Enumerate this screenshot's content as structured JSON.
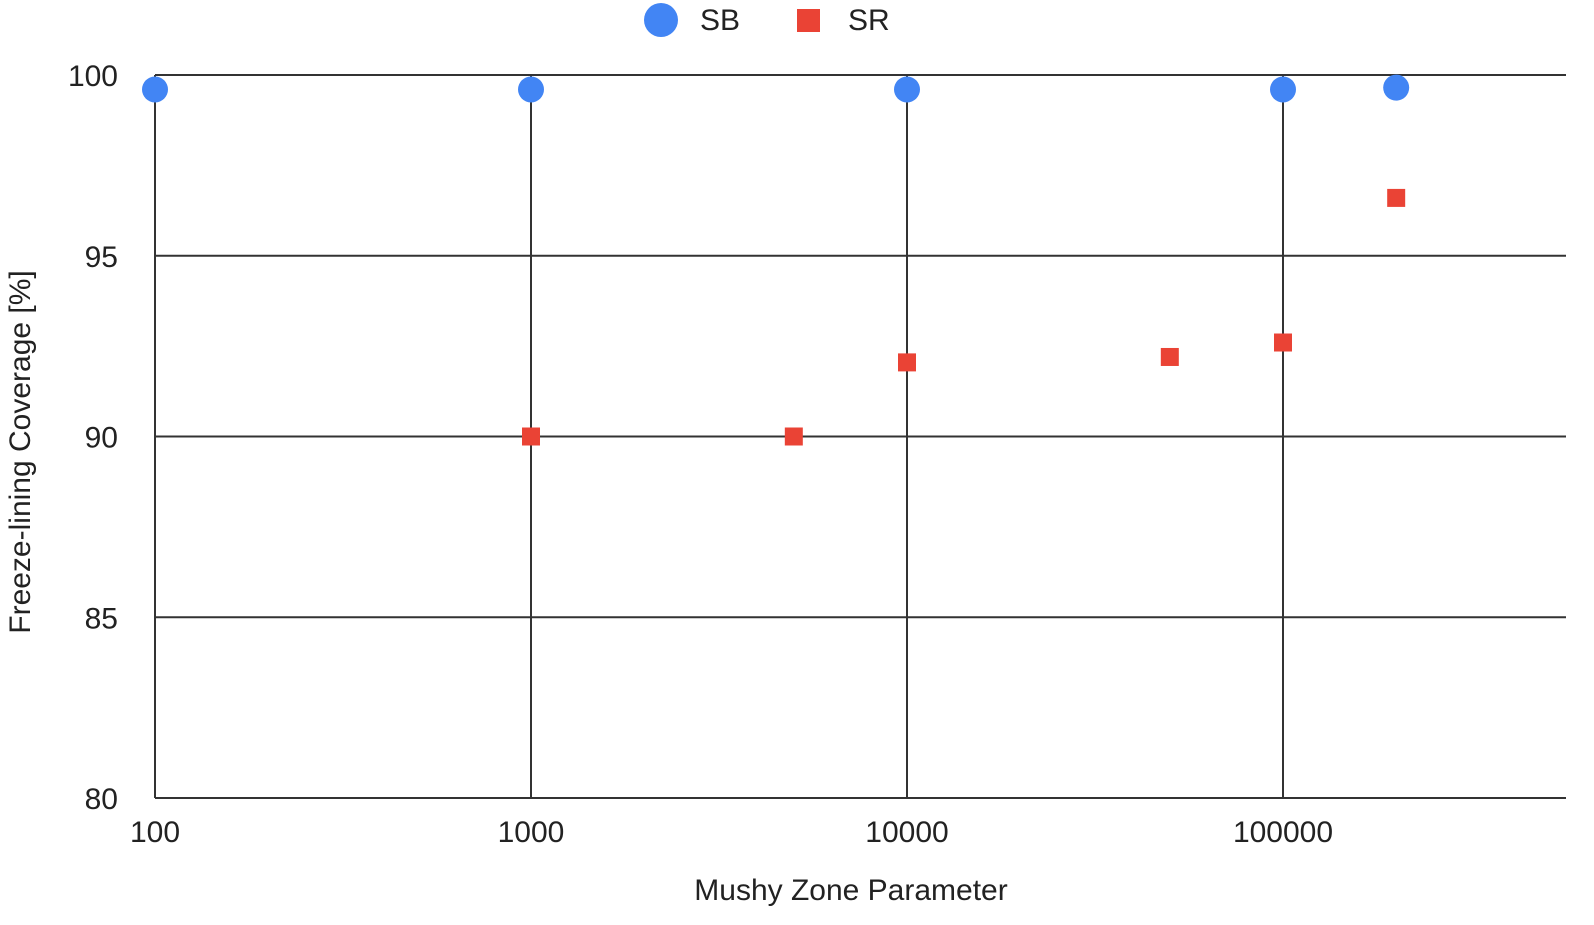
{
  "colors": {
    "SB": "#4285F4",
    "SR": "#EA4335",
    "grid": "#333333"
  },
  "legend": {
    "position": "top-center",
    "items": [
      {
        "label": "SB",
        "marker": "circle",
        "color": "#4285F4"
      },
      {
        "label": "SR",
        "marker": "square",
        "color": "#EA4335"
      }
    ]
  },
  "chart_data": {
    "type": "scatter",
    "xlabel": "Mushy Zone Parameter",
    "ylabel": "Freeze-lining Coverage [%]",
    "x_scale": "log",
    "xlim": [
      100,
      600000
    ],
    "ylim": [
      80,
      100
    ],
    "x_ticks": [
      100,
      1000,
      10000,
      100000
    ],
    "x_tick_labels": [
      "100",
      "1000",
      "10000",
      "100000"
    ],
    "y_ticks": [
      80,
      85,
      90,
      95,
      100
    ],
    "y_tick_labels": [
      "80",
      "85",
      "90",
      "95",
      "100"
    ],
    "grid": true,
    "series": [
      {
        "name": "SB",
        "marker": "circle",
        "color": "#4285F4",
        "x": [
          100,
          1000,
          10000,
          100000,
          200000
        ],
        "y": [
          99.6,
          99.6,
          99.6,
          99.6,
          99.65
        ]
      },
      {
        "name": "SR",
        "marker": "square",
        "color": "#EA4335",
        "x": [
          1000,
          5000,
          10000,
          50000,
          100000,
          200000
        ],
        "y": [
          90.0,
          90.0,
          92.05,
          92.2,
          92.6,
          96.6
        ]
      }
    ]
  }
}
